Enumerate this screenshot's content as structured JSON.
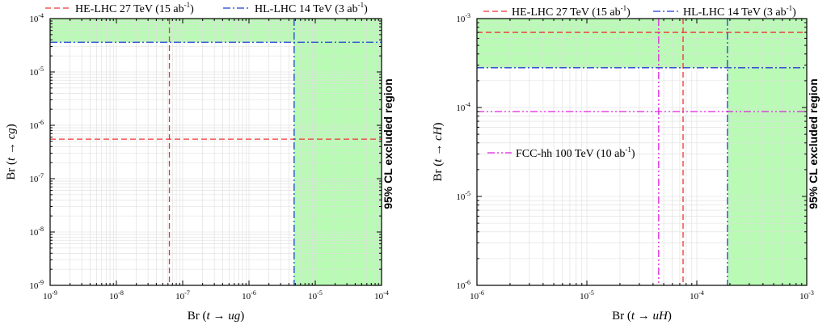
{
  "colors": {
    "excluded_fill": "#b9fbb5",
    "hl_lhc": "#1f3fd6",
    "he_lhc": "#f23333",
    "fcc_hh": "#e020e0",
    "frame": "#000000",
    "grid": "#dddddd"
  },
  "chart_data": [
    {
      "type": "line",
      "log_scale": {
        "x": true,
        "y": true
      },
      "xlabel": "Br (t → ug)",
      "ylabel": "Br (t → cg)",
      "xlim": [
        1e-09,
        0.0001
      ],
      "ylim": [
        1e-09,
        0.0001
      ],
      "x_ticks": [
        {
          "base": "10",
          "exp": "-9"
        },
        {
          "base": "10",
          "exp": "-8"
        },
        {
          "base": "10",
          "exp": "-7"
        },
        {
          "base": "10",
          "exp": "-6"
        },
        {
          "base": "10",
          "exp": "-5"
        },
        {
          "base": "10",
          "exp": "-4"
        }
      ],
      "y_ticks": [
        {
          "base": "10",
          "exp": "-9"
        },
        {
          "base": "10",
          "exp": "-8"
        },
        {
          "base": "10",
          "exp": "-7"
        },
        {
          "base": "10",
          "exp": "-6"
        },
        {
          "base": "10",
          "exp": "-5"
        },
        {
          "base": "10",
          "exp": "-4"
        }
      ],
      "grid": true,
      "side_label": "95% CL excluded region",
      "legend_position": "top",
      "excluded_region": {
        "x_above": 4.8e-06,
        "y_above": 3.6e-05
      },
      "series": [
        {
          "name": "HE-LHC 27 TeV (15 ab-1)",
          "legend_main": "HE-LHC 27 TeV (15 ab",
          "legend_sup": "-1",
          "legend_end": ")",
          "style": "dashed",
          "color_key": "he_lhc",
          "x_limit": 6.3e-08,
          "y_limit": 5.5e-07
        },
        {
          "name": "HL-LHC 14 TeV (3 ab-1)",
          "legend_main": "HL-LHC 14 TeV (3 ab",
          "legend_sup": "-1",
          "legend_end": ")",
          "style": "dashdot",
          "color_key": "hl_lhc",
          "x_limit": 4.8e-06,
          "y_limit": 3.6e-05
        }
      ]
    },
    {
      "type": "line",
      "log_scale": {
        "x": true,
        "y": true
      },
      "xlabel": "Br (t → uH)",
      "ylabel": "Br (t → cH)",
      "xlim": [
        1e-06,
        0.001
      ],
      "ylim": [
        1e-06,
        0.001
      ],
      "x_ticks": [
        {
          "base": "10",
          "exp": "-6"
        },
        {
          "base": "10",
          "exp": "-5"
        },
        {
          "base": "10",
          "exp": "-4"
        },
        {
          "base": "10",
          "exp": "-3"
        }
      ],
      "y_ticks": [
        {
          "base": "10",
          "exp": "-6"
        },
        {
          "base": "10",
          "exp": "-5"
        },
        {
          "base": "10",
          "exp": "-4"
        },
        {
          "base": "10",
          "exp": "-3"
        }
      ],
      "grid": true,
      "side_label": "95% CL excluded region",
      "legend_position": "top",
      "excluded_region": {
        "x_above": 0.00019,
        "y_above": 0.00028
      },
      "series": [
        {
          "name": "HE-LHC 27 TeV (15 ab-1)",
          "legend_main": "HE-LHC 27 TeV (15 ab",
          "legend_sup": "-1",
          "legend_end": ")",
          "style": "dashed",
          "color_key": "he_lhc",
          "x_limit": 7.5e-05,
          "y_limit": 0.0007
        },
        {
          "name": "HL-LHC 14 TeV (3 ab-1)",
          "legend_main": "HL-LHC 14 TeV (3 ab",
          "legend_sup": "-1",
          "legend_end": ")",
          "style": "dashdot",
          "color_key": "hl_lhc",
          "x_limit": 0.00019,
          "y_limit": 0.00028
        },
        {
          "name": "FCC-hh 100 TeV (10 ab-1)",
          "legend_main": "FCC-hh 100 TeV (10 ab",
          "legend_sup": "-1",
          "legend_end": ")",
          "style": "dashdotdot",
          "color_key": "fcc_hh",
          "x_limit": 4.5e-05,
          "y_limit": 9e-05,
          "legend_inside": true
        }
      ]
    }
  ]
}
